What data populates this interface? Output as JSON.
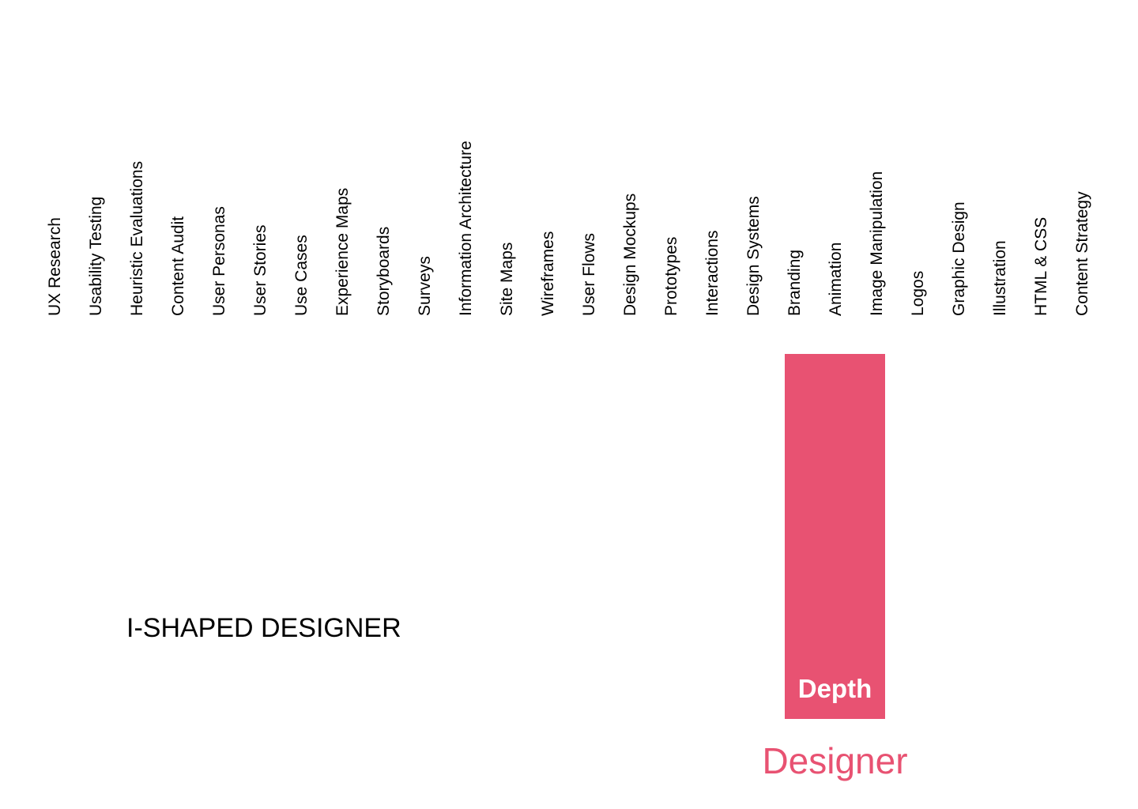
{
  "title": "I-SHAPED DESIGNER",
  "skills": [
    "UX Research",
    "Usability Testing",
    "Heuristic Evaluations",
    "Content Audit",
    "User Personas",
    "User Stories",
    "Use Cases",
    "Experience Maps",
    "Storyboards",
    "Surveys",
    "Information Architecture",
    "Site Maps",
    "Wireframes",
    "User Flows",
    "Design Mockups",
    "Prototypes",
    "Interactions",
    "Design Systems",
    "Branding",
    "Animation",
    "Image Manipulation",
    "Logos",
    "Graphic Design",
    "Illustration",
    "HTML & CSS",
    "Content Strategy"
  ],
  "depth": {
    "label": "Depth",
    "color": "#e85272",
    "skills_spanned": [
      "Branding",
      "Animation"
    ]
  },
  "role": {
    "label": "Designer",
    "color": "#e85272"
  }
}
